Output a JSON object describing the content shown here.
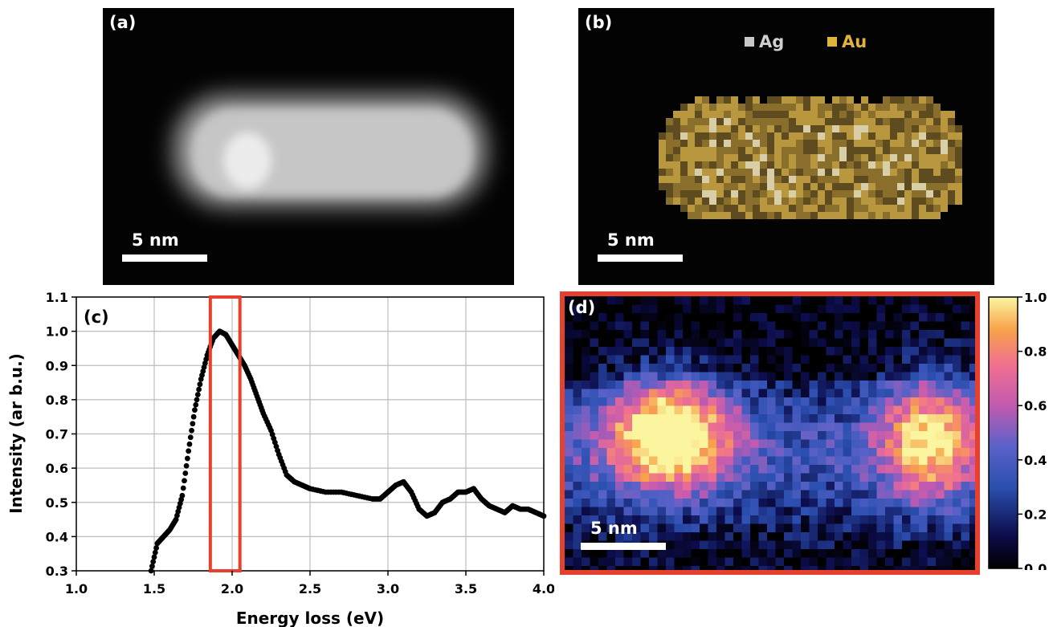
{
  "panels": {
    "a": {
      "label": "(a)",
      "scale_bar": "5 nm"
    },
    "b": {
      "label": "(b)",
      "scale_bar": "5 nm",
      "legend": [
        {
          "name": "Ag",
          "color": "#c8c8c8"
        },
        {
          "name": "Au",
          "color": "#e0b33c"
        }
      ]
    },
    "c": {
      "label": "(c)"
    },
    "d": {
      "label": "(d)",
      "scale_bar": "5 nm"
    }
  },
  "colorbar": {
    "ticks": [
      "1.0",
      "0.8",
      "0.6",
      "0.4",
      "0.2",
      "0.0"
    ],
    "colormap": "plasma"
  },
  "highlight_color": "#e8402f",
  "chart_data": {
    "type": "scatter",
    "xlabel": "Energy loss (eV)",
    "ylabel": "Intensity (ar b.u.)",
    "xlim": [
      1.0,
      4.0
    ],
    "ylim": [
      0.3,
      1.1
    ],
    "xticks": [
      "1.0",
      "1.5",
      "2.0",
      "2.5",
      "3.0",
      "3.5",
      "4.0"
    ],
    "yticks": [
      "0.3",
      "0.4",
      "0.5",
      "0.6",
      "0.7",
      "0.8",
      "0.9",
      "1.0",
      "1.1"
    ],
    "grid": true,
    "highlight_window": [
      1.86,
      2.05
    ],
    "series": [
      {
        "x": [
          1.48,
          1.52,
          1.56,
          1.6,
          1.64,
          1.68,
          1.72,
          1.76,
          1.8,
          1.84,
          1.88,
          1.92,
          1.96,
          2.0,
          2.04,
          2.08,
          2.12,
          2.16,
          2.2,
          2.25,
          2.3,
          2.35,
          2.4,
          2.45,
          2.5,
          2.6,
          2.7,
          2.8,
          2.9,
          2.95,
          3.0,
          3.05,
          3.1,
          3.15,
          3.2,
          3.25,
          3.3,
          3.35,
          3.4,
          3.45,
          3.5,
          3.55,
          3.6,
          3.65,
          3.7,
          3.75,
          3.8,
          3.85,
          3.9,
          3.95,
          4.0
        ],
        "y": [
          0.3,
          0.38,
          0.4,
          0.42,
          0.45,
          0.52,
          0.65,
          0.77,
          0.86,
          0.93,
          0.98,
          1.0,
          0.99,
          0.96,
          0.93,
          0.9,
          0.86,
          0.81,
          0.76,
          0.71,
          0.64,
          0.58,
          0.56,
          0.55,
          0.54,
          0.53,
          0.53,
          0.52,
          0.51,
          0.51,
          0.53,
          0.55,
          0.56,
          0.53,
          0.48,
          0.46,
          0.47,
          0.5,
          0.51,
          0.53,
          0.53,
          0.54,
          0.51,
          0.49,
          0.48,
          0.47,
          0.49,
          0.48,
          0.48,
          0.47,
          0.46
        ]
      }
    ]
  }
}
